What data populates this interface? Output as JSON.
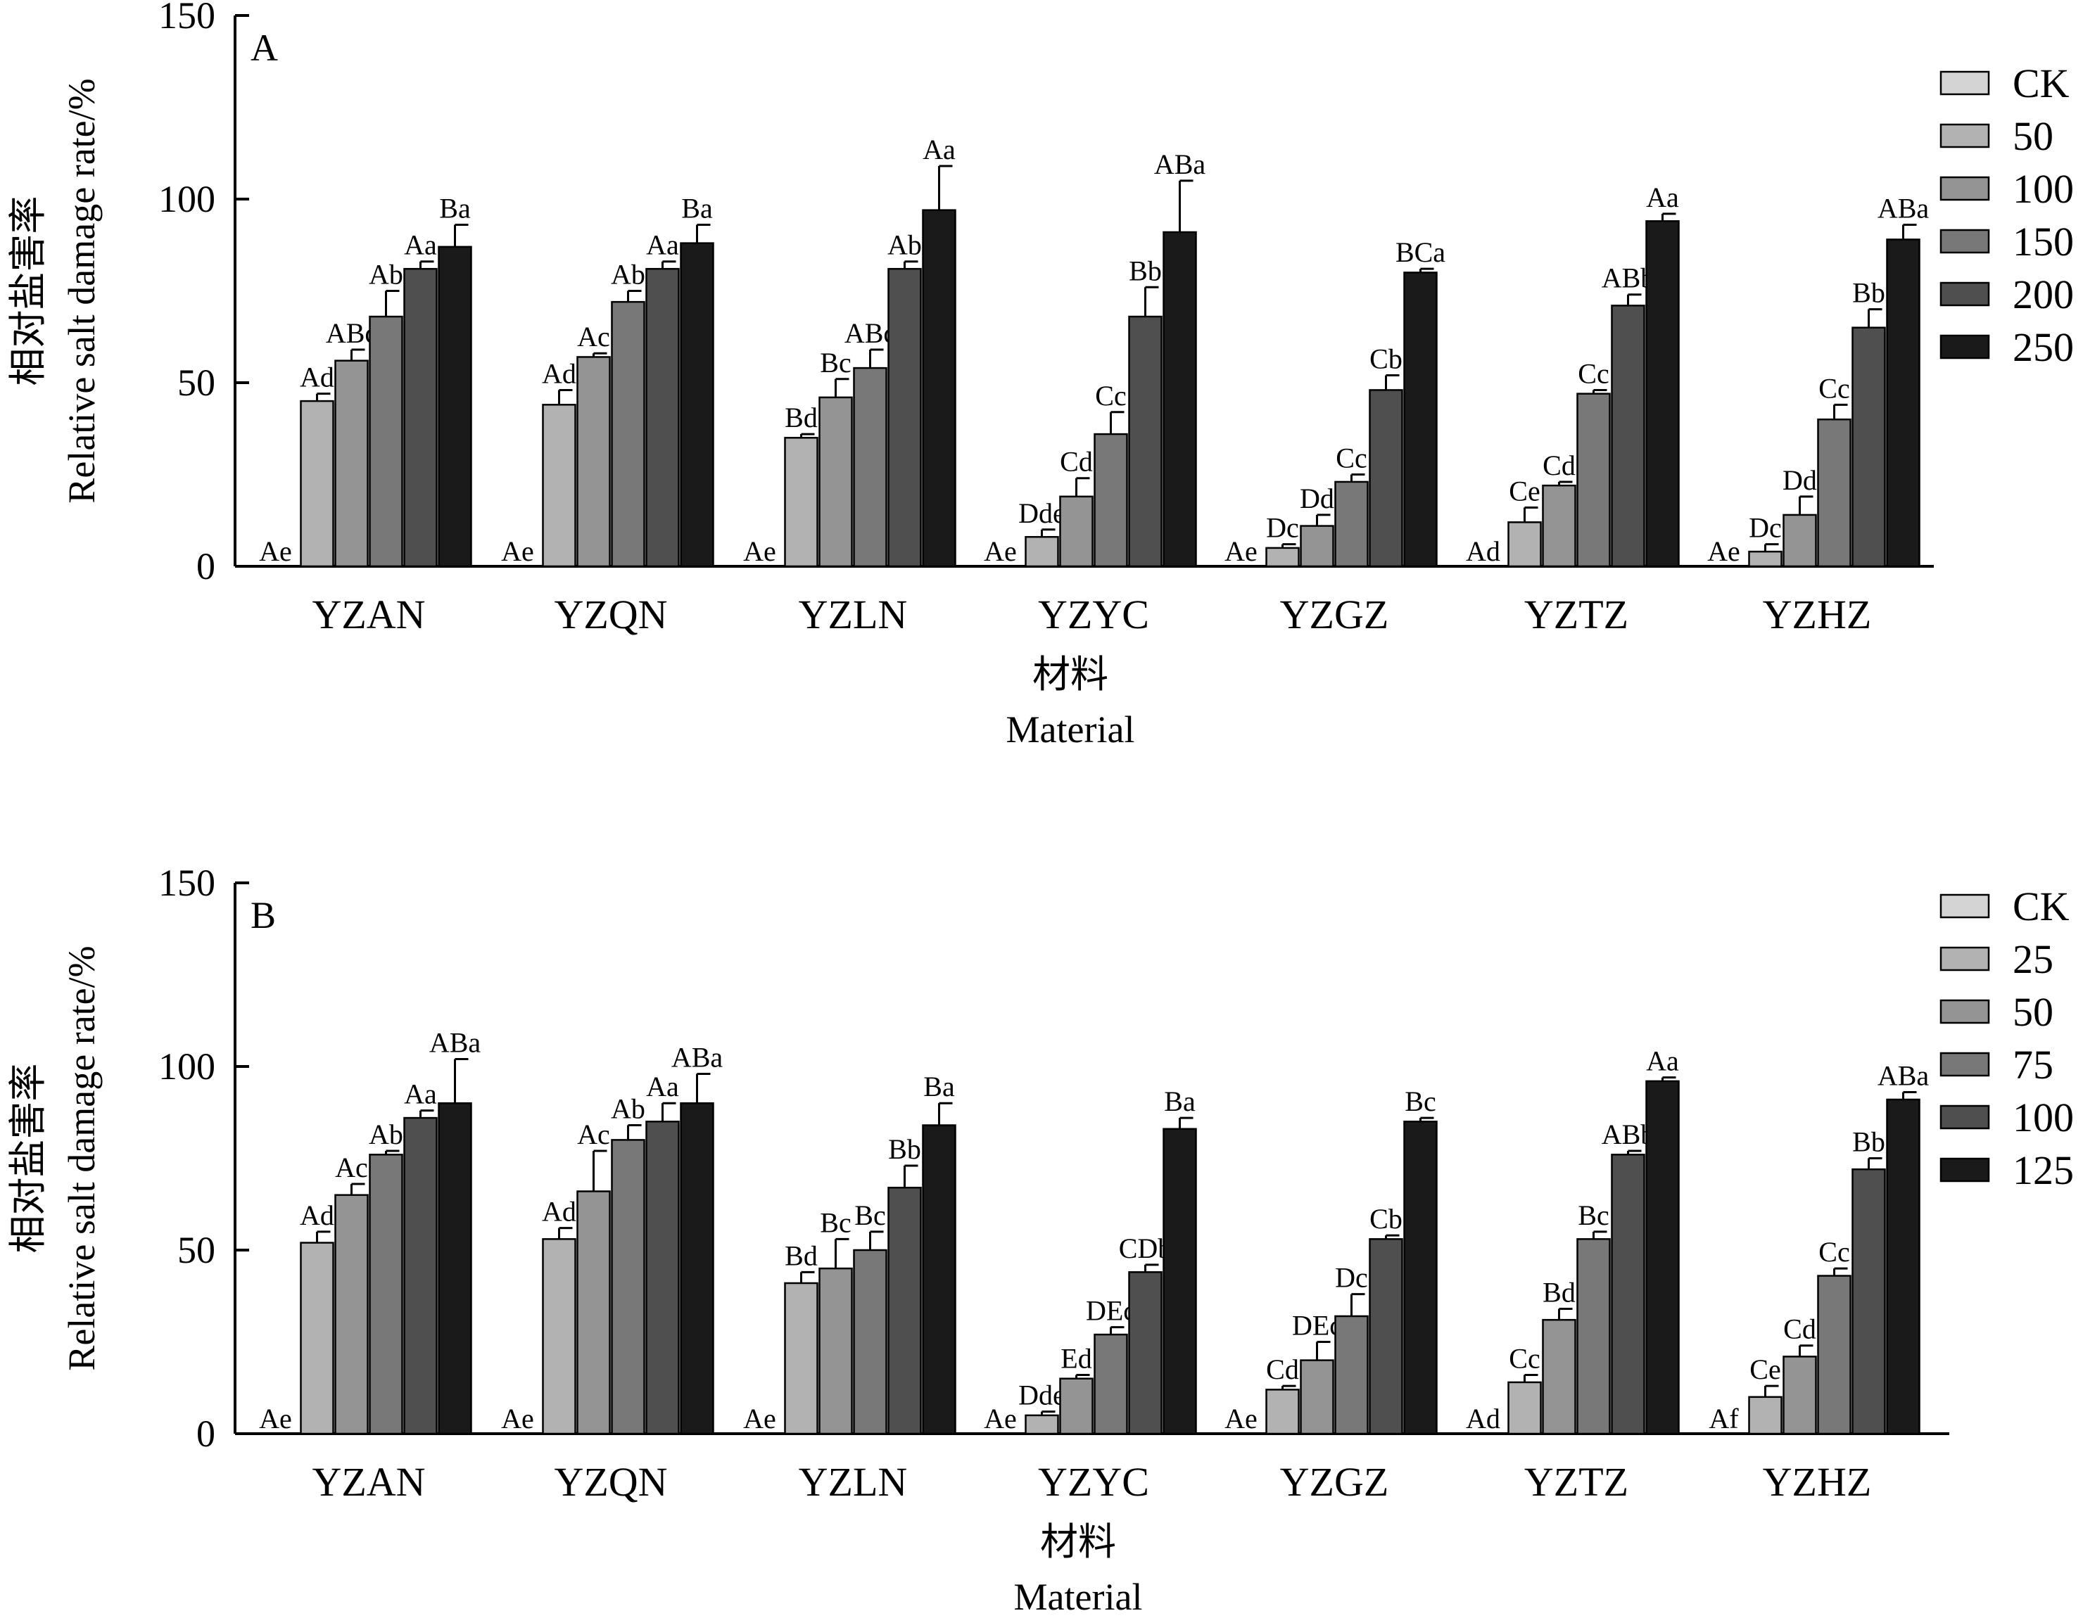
{
  "colors": [
    "#d4d4d4",
    "#b2b2b2",
    "#949494",
    "#787878",
    "#4f4f4f",
    "#1a1a1a"
  ],
  "chart_data": [
    {
      "type": "bar",
      "panel": "A",
      "categories": [
        "YZAN",
        "YZQN",
        "YZLN",
        "YZYC",
        "YZGZ",
        "YZTZ",
        "YZHZ"
      ],
      "ylabel_cn": "相对盐害率",
      "ylabel_en": "Relative salt damage rate/%",
      "xlabel_cn": "材料",
      "xlabel_en": "Material",
      "ylim": [
        0,
        150
      ],
      "yticks": [
        0,
        50,
        100,
        150
      ],
      "legend_position": "right",
      "series": [
        {
          "name": "CK",
          "values": [
            0,
            0,
            0,
            0,
            0,
            0,
            0
          ],
          "errors": [
            0,
            0,
            0,
            0,
            0,
            0,
            0
          ],
          "labels": [
            "Ae",
            "Ae",
            "Ae",
            "Ae",
            "Ae",
            "Ad",
            "Ae"
          ]
        },
        {
          "name": "50",
          "values": [
            45,
            44,
            35,
            8,
            5,
            12,
            4
          ],
          "errors": [
            2,
            4,
            1,
            2,
            1,
            4,
            2
          ],
          "labels": [
            "Ad",
            "Ad",
            "Bd",
            "Dde",
            "Dc",
            "Ce",
            "Dc"
          ]
        },
        {
          "name": "100",
          "values": [
            56,
            57,
            46,
            19,
            11,
            22,
            14
          ],
          "errors": [
            3,
            1,
            5,
            5,
            3,
            1,
            5
          ],
          "labels": [
            "ABc",
            "Ac",
            "Bc",
            "Cd",
            "Dd",
            "Cd",
            "Dd"
          ]
        },
        {
          "name": "150",
          "values": [
            68,
            72,
            54,
            36,
            23,
            47,
            40
          ],
          "errors": [
            7,
            3,
            5,
            6,
            2,
            1,
            4
          ],
          "labels": [
            "Ab",
            "Ab",
            "ABc",
            "Cc",
            "Cc",
            "Cc",
            "Cc"
          ]
        },
        {
          "name": "200",
          "values": [
            81,
            81,
            81,
            68,
            48,
            71,
            65
          ],
          "errors": [
            2,
            2,
            2,
            8,
            4,
            3,
            5
          ],
          "labels": [
            "Aa",
            "Aa",
            "Ab",
            "Bb",
            "Cb",
            "ABb",
            "Bb"
          ]
        },
        {
          "name": "250",
          "values": [
            87,
            88,
            97,
            91,
            80,
            94,
            89
          ],
          "errors": [
            6,
            5,
            12,
            14,
            1,
            2,
            4
          ],
          "labels": [
            "Ba",
            "Ba",
            "Aa",
            "ABa",
            "BCa",
            "Aa",
            "ABa"
          ]
        }
      ]
    },
    {
      "type": "bar",
      "panel": "B",
      "categories": [
        "YZAN",
        "YZQN",
        "YZLN",
        "YZYC",
        "YZGZ",
        "YZTZ",
        "YZHZ"
      ],
      "ylabel_cn": "相对盐害率",
      "ylabel_en": "Relative salt damage rate/%",
      "xlabel_cn": "材料",
      "xlabel_en": "Material",
      "ylim": [
        0,
        150
      ],
      "yticks": [
        0,
        50,
        100,
        150
      ],
      "legend_position": "right",
      "series": [
        {
          "name": "CK",
          "values": [
            0,
            0,
            0,
            0,
            0,
            0,
            0
          ],
          "errors": [
            0,
            0,
            0,
            0,
            0,
            0,
            0
          ],
          "labels": [
            "Ae",
            "Ae",
            "Ae",
            "Ae",
            "Ae",
            "Ad",
            "Af"
          ]
        },
        {
          "name": "25",
          "values": [
            52,
            53,
            41,
            5,
            12,
            14,
            10
          ],
          "errors": [
            3,
            3,
            3,
            1,
            1,
            2,
            3
          ],
          "labels": [
            "Ad",
            "Ad",
            "Bd",
            "Dde",
            "Cd",
            "Cc",
            "Ce"
          ]
        },
        {
          "name": "50",
          "values": [
            65,
            66,
            45,
            15,
            20,
            31,
            21
          ],
          "errors": [
            3,
            11,
            8,
            1,
            5,
            3,
            3
          ],
          "labels": [
            "Ac",
            "Ac",
            "Bc",
            "Ed",
            "DEc",
            "Bd",
            "Cd"
          ]
        },
        {
          "name": "75",
          "values": [
            76,
            80,
            50,
            27,
            32,
            53,
            43
          ],
          "errors": [
            1,
            4,
            5,
            2,
            6,
            2,
            2
          ],
          "labels": [
            "Ab",
            "Ab",
            "Bc",
            "DEc",
            "Dc",
            "Bc",
            "Cc"
          ]
        },
        {
          "name": "100",
          "values": [
            86,
            85,
            67,
            44,
            53,
            76,
            72
          ],
          "errors": [
            2,
            5,
            6,
            2,
            1,
            1,
            3
          ],
          "labels": [
            "Aa",
            "Aa",
            "Bb",
            "CDb",
            "Cb",
            "ABb",
            "Bb"
          ]
        },
        {
          "name": "125",
          "values": [
            90,
            90,
            84,
            83,
            85,
            96,
            91
          ],
          "errors": [
            12,
            8,
            6,
            3,
            1,
            1,
            2
          ],
          "labels": [
            "ABa",
            "ABa",
            "Ba",
            "Ba",
            "Bc",
            "Aa",
            "ABa"
          ]
        }
      ]
    }
  ]
}
